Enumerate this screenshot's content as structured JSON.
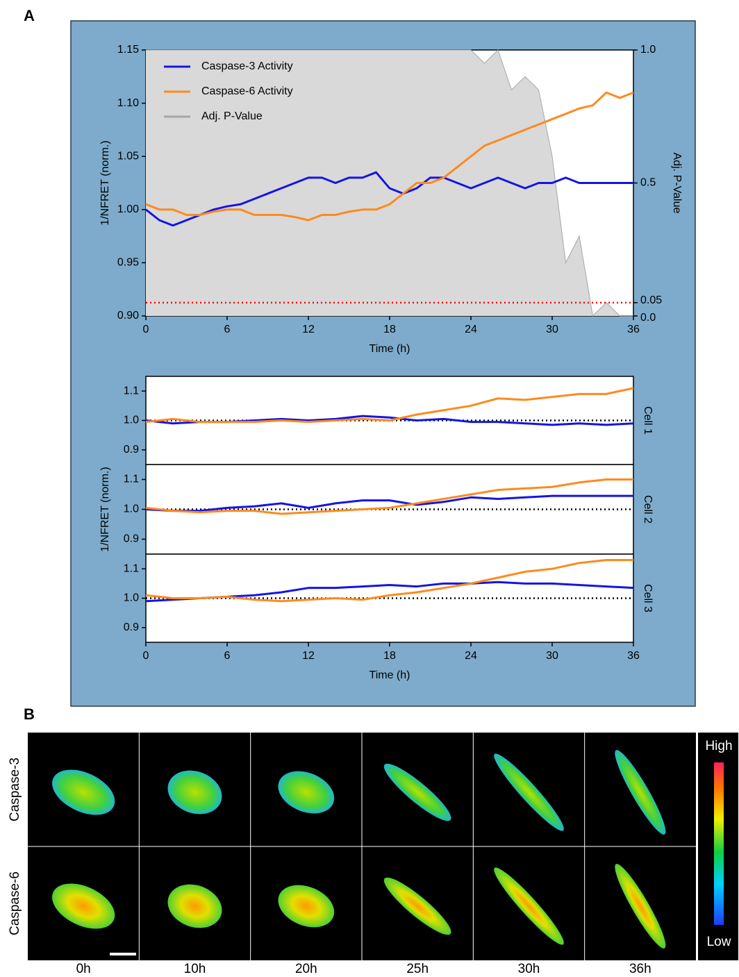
{
  "panel_labels": [
    "A",
    "B"
  ],
  "chart_data": [
    {
      "type": "line",
      "xlabel": "Time (h)",
      "ylabel": "1/NFRET (norm.)",
      "y2label": "Adj. P-Value",
      "x": [
        0,
        1,
        2,
        3,
        4,
        5,
        6,
        7,
        8,
        9,
        10,
        11,
        12,
        13,
        14,
        15,
        16,
        17,
        18,
        19,
        20,
        21,
        22,
        23,
        24,
        25,
        26,
        27,
        28,
        29,
        30,
        31,
        32,
        33,
        34,
        35,
        36
      ],
      "xlim": [
        0,
        36
      ],
      "xticks": [
        0,
        6,
        12,
        18,
        24,
        30,
        36
      ],
      "ylim": [
        0.9,
        1.15
      ],
      "yticks": [
        {
          "value": 0.9,
          "label": "0.90"
        },
        0.95,
        {
          "value": 1,
          "label": "1.00"
        },
        1.05,
        {
          "value": 1.1,
          "label": "1.10"
        },
        1.15
      ],
      "y2lim": [
        0,
        1
      ],
      "y2ticks": [
        {
          "value": 0,
          "label": "0.0"
        },
        0.05,
        0.5,
        {
          "value": 1,
          "label": "1.0"
        }
      ],
      "legend": "upper left",
      "reference_line": {
        "value": 0.05,
        "axis": "y2",
        "color": "#ff0000"
      },
      "series": [
        {
          "name": "Caspase-3 Activity",
          "color": "#1414e6",
          "values": [
            1.0,
            0.99,
            0.985,
            0.99,
            0.995,
            1.0,
            1.003,
            1.005,
            1.01,
            1.015,
            1.02,
            1.025,
            1.03,
            1.03,
            1.025,
            1.03,
            1.03,
            1.035,
            1.02,
            1.015,
            1.02,
            1.03,
            1.03,
            1.025,
            1.02,
            1.025,
            1.03,
            1.025,
            1.02,
            1.025,
            1.025,
            1.03,
            1.025,
            1.025,
            1.025,
            1.025,
            1.025
          ]
        },
        {
          "name": "Caspase-6 Activity",
          "color": "#ff8a1c",
          "values": [
            1.005,
            1.0,
            1.0,
            0.995,
            0.995,
            0.998,
            1.0,
            1.0,
            0.995,
            0.995,
            0.995,
            0.993,
            0.99,
            0.995,
            0.995,
            0.998,
            1.0,
            1.0,
            1.005,
            1.015,
            1.025,
            1.025,
            1.03,
            1.04,
            1.05,
            1.06,
            1.065,
            1.07,
            1.075,
            1.08,
            1.085,
            1.09,
            1.095,
            1.098,
            1.11,
            1.105,
            1.11
          ]
        },
        {
          "name": "Adj. P-Value",
          "color": "#a6a6a6",
          "axis": "y2",
          "values": [
            1,
            1,
            1,
            1,
            1,
            1,
            1,
            1,
            1,
            1,
            1,
            1,
            1,
            1,
            1,
            1,
            1,
            1,
            1,
            1,
            1,
            1,
            1,
            1,
            1,
            0.95,
            1,
            0.85,
            0.9,
            0.85,
            0.6,
            0.2,
            0.3,
            0,
            0.05,
            0,
            0
          ]
        }
      ]
    },
    {
      "type": "line",
      "title": "Cell 1",
      "x": [
        0,
        2,
        4,
        6,
        8,
        10,
        12,
        14,
        16,
        18,
        20,
        22,
        24,
        26,
        28,
        30,
        32,
        34,
        36
      ],
      "xlim": [
        0,
        36
      ],
      "ylim": [
        0.85,
        1.15
      ],
      "yticks": [
        0.9,
        {
          "value": 1,
          "label": "1.0"
        },
        1.1
      ],
      "reference_line": {
        "value": 1,
        "color": "#000000"
      },
      "series": [
        {
          "color": "#1414e6",
          "values": [
            1.0,
            0.99,
            0.995,
            0.995,
            1.0,
            1.005,
            1.0,
            1.005,
            1.015,
            1.01,
            1.0,
            1.005,
            0.995,
            0.995,
            0.99,
            0.985,
            0.99,
            0.985,
            0.99
          ]
        },
        {
          "color": "#ff8a1c",
          "values": [
            0.995,
            1.005,
            0.995,
            0.995,
            0.995,
            1.0,
            0.995,
            1.0,
            1.005,
            1.0,
            1.02,
            1.035,
            1.05,
            1.075,
            1.07,
            1.08,
            1.09,
            1.09,
            1.11
          ]
        }
      ]
    },
    {
      "type": "line",
      "title": "Cell 2",
      "ylabel": "1/NFRET (norm.)",
      "x": [
        0,
        2,
        4,
        6,
        8,
        10,
        12,
        14,
        16,
        18,
        20,
        22,
        24,
        26,
        28,
        30,
        32,
        34,
        36
      ],
      "xlim": [
        0,
        36
      ],
      "ylim": [
        0.85,
        1.15
      ],
      "yticks": [
        0.9,
        {
          "value": 1,
          "label": "1.0"
        },
        1.1
      ],
      "reference_line": {
        "value": 1,
        "color": "#000000"
      },
      "series": [
        {
          "color": "#1414e6",
          "values": [
            1.0,
            0.995,
            0.995,
            1.005,
            1.01,
            1.02,
            1.005,
            1.02,
            1.03,
            1.03,
            1.015,
            1.025,
            1.04,
            1.035,
            1.04,
            1.045,
            1.045,
            1.045,
            1.045
          ]
        },
        {
          "color": "#ff8a1c",
          "values": [
            1.005,
            0.995,
            0.99,
            0.995,
            0.995,
            0.985,
            0.99,
            0.995,
            1.0,
            1.005,
            1.02,
            1.035,
            1.05,
            1.065,
            1.07,
            1.075,
            1.09,
            1.1,
            1.1
          ]
        }
      ]
    },
    {
      "type": "line",
      "title": "Cell 3",
      "xlabel": "Time (h)",
      "x": [
        0,
        2,
        4,
        6,
        8,
        10,
        12,
        14,
        16,
        18,
        20,
        22,
        24,
        26,
        28,
        30,
        32,
        34,
        36
      ],
      "xlim": [
        0,
        36
      ],
      "xticks": [
        0,
        6,
        12,
        18,
        24,
        30,
        36
      ],
      "ylim": [
        0.85,
        1.15
      ],
      "yticks": [
        0.9,
        {
          "value": 1,
          "label": "1.0"
        },
        1.1
      ],
      "reference_line": {
        "value": 1,
        "color": "#000000"
      },
      "series": [
        {
          "color": "#1414e6",
          "values": [
            0.99,
            0.995,
            1.0,
            1.005,
            1.01,
            1.02,
            1.035,
            1.035,
            1.04,
            1.045,
            1.04,
            1.05,
            1.05,
            1.055,
            1.05,
            1.05,
            1.045,
            1.04,
            1.035
          ]
        },
        {
          "color": "#ff8a1c",
          "values": [
            1.01,
            1.0,
            1.0,
            1.005,
            0.995,
            0.99,
            0.995,
            1.0,
            0.995,
            1.01,
            1.02,
            1.035,
            1.05,
            1.07,
            1.09,
            1.1,
            1.12,
            1.13,
            1.13
          ]
        }
      ]
    }
  ],
  "image_grid": {
    "rows": [
      "Caspase-3",
      "Caspase-6"
    ],
    "columns": [
      "0h",
      "10h",
      "20h",
      "25h",
      "30h",
      "36h"
    ],
    "colorbar": {
      "high": "High",
      "low": "Low"
    }
  }
}
